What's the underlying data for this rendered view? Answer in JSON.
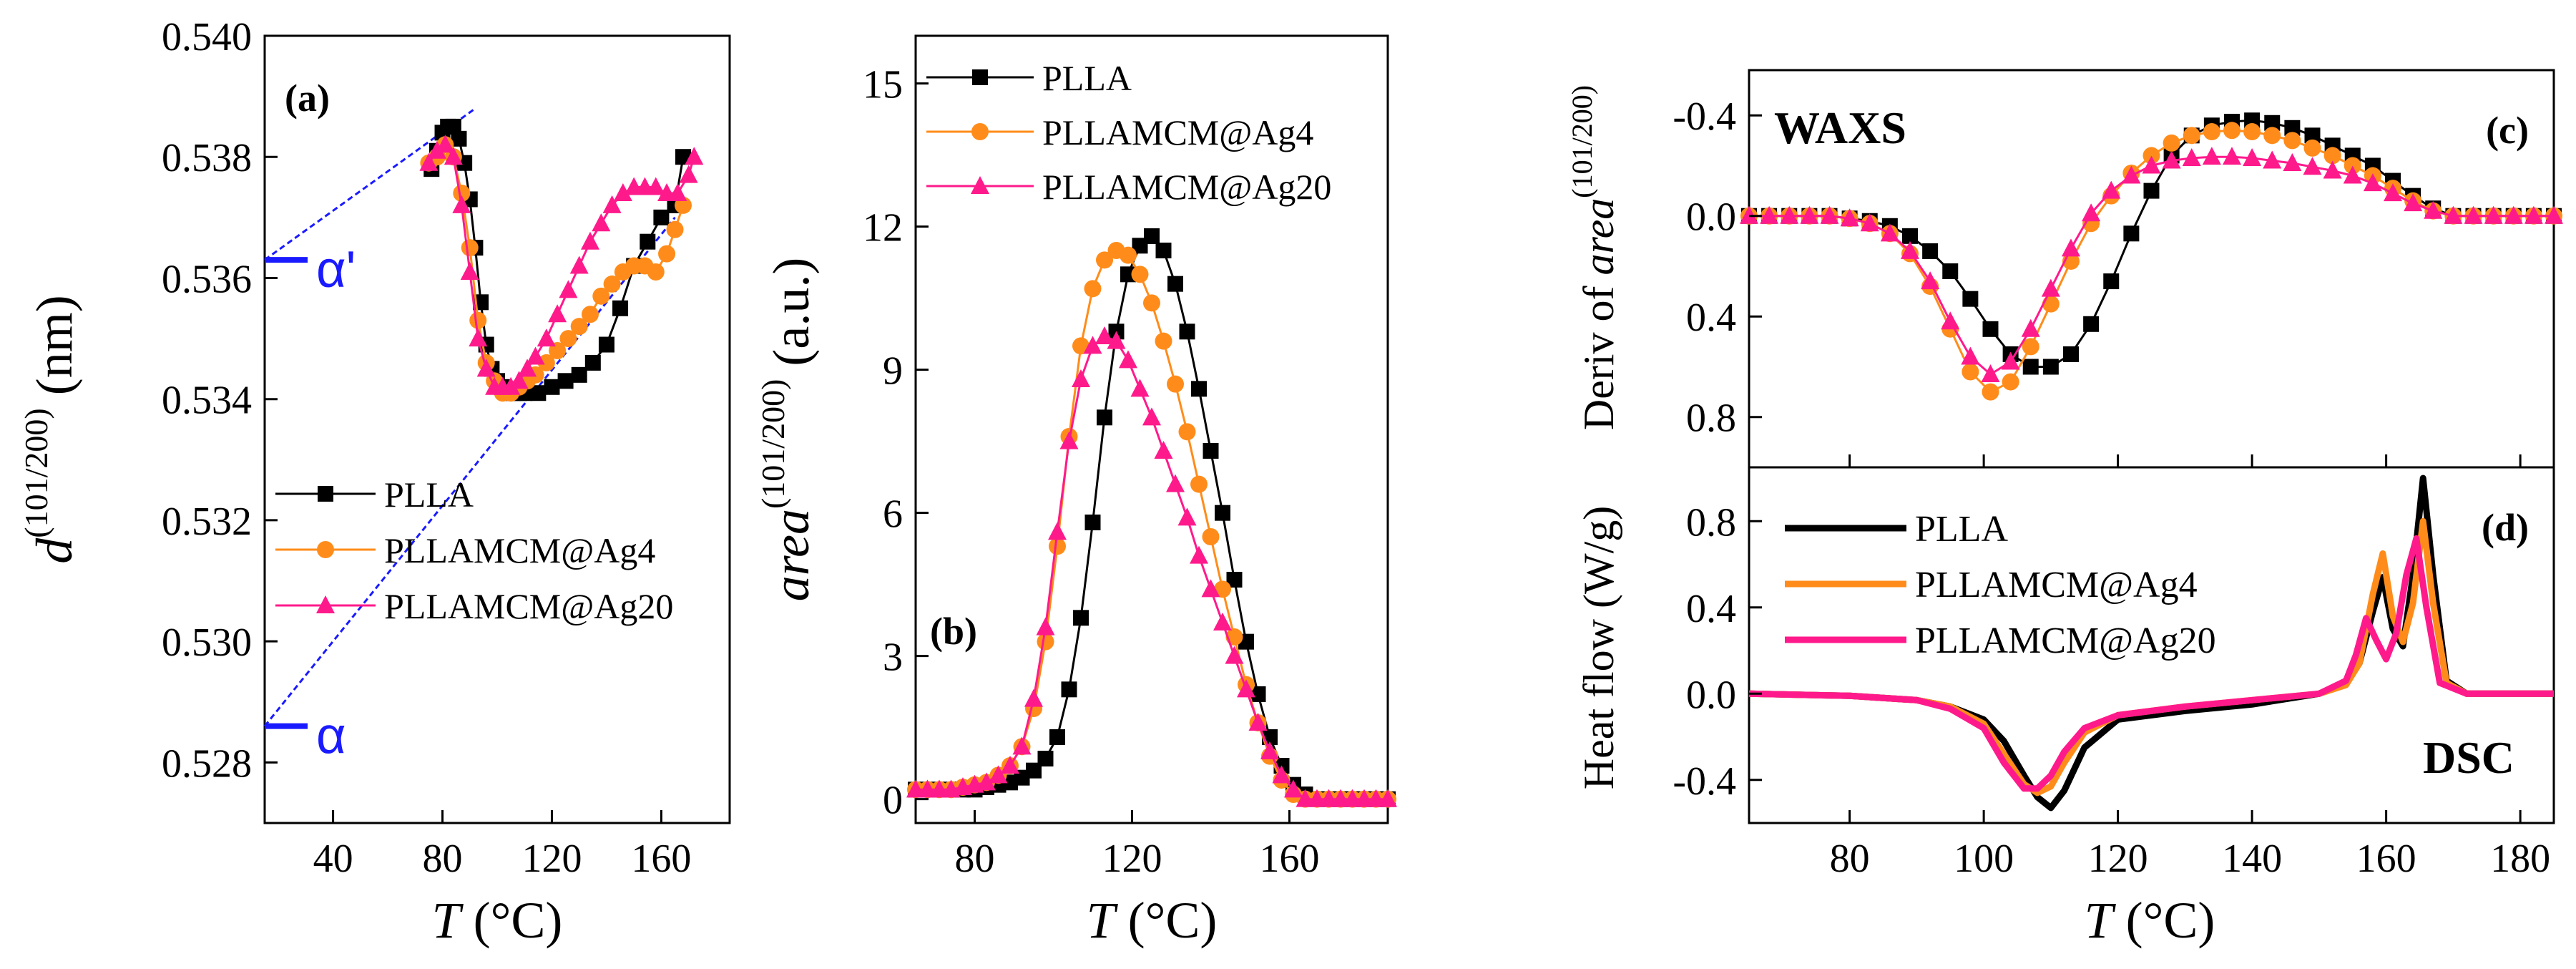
{
  "colors": {
    "PLLA": "#000000",
    "PLLAMCM@Ag4": "#ff8c1a",
    "PLLAMCM@Ag20": "#ff1a8c",
    "ref": "#1a1aff",
    "fit": "#2ecc40"
  },
  "chart_data": [
    {
      "id": "a",
      "type": "scatter",
      "panel_label": "(a)",
      "xlabel": "T (°C)",
      "xlabel_var": "T",
      "xlabel_unit": " (°C)",
      "ylabel_var": "d",
      "ylabel_sup": "(101/200)",
      "ylabel_unit": " (nm)",
      "xlim": [
        15,
        185
      ],
      "ylim": [
        0.527,
        0.54
      ],
      "xticks": [
        "40",
        "80",
        "120",
        "160"
      ],
      "xtick_values": [
        40,
        80,
        120,
        160
      ],
      "yticks": [
        "0.528",
        "0.530",
        "0.532",
        "0.534",
        "0.536",
        "0.538",
        "0.540"
      ],
      "ytick_values": [
        0.528,
        0.53,
        0.532,
        0.534,
        0.536,
        0.538,
        0.54
      ],
      "legend": [
        "PLLA",
        "PLLAMCM@Ag4",
        "PLLAMCM@Ag20"
      ],
      "reference_labels": [
        {
          "text": "α'",
          "y": 0.5363
        },
        {
          "text": "α",
          "y": 0.5286
        }
      ],
      "guide_lines": [
        {
          "x": [
            15,
            92
          ],
          "y": [
            0.5363,
            0.5388
          ]
        },
        {
          "x": [
            15,
            165
          ],
          "y": [
            0.5286,
            0.537
          ]
        }
      ],
      "series": [
        {
          "name": "PLLA",
          "x": [
            76,
            78,
            80,
            82,
            84,
            86,
            88,
            90,
            92,
            94,
            96,
            98,
            100,
            102,
            104,
            106,
            108,
            110,
            115,
            120,
            125,
            130,
            135,
            140,
            145,
            150,
            155,
            160,
            165,
            168
          ],
          "y": [
            0.5378,
            0.5381,
            0.5384,
            0.5385,
            0.5385,
            0.5383,
            0.5379,
            0.5373,
            0.5365,
            0.5356,
            0.5349,
            0.5345,
            0.5343,
            0.5342,
            0.5341,
            0.5341,
            0.5341,
            0.5341,
            0.5341,
            0.5342,
            0.5343,
            0.5344,
            0.5346,
            0.5349,
            0.5355,
            0.5362,
            0.5366,
            0.537,
            0.5372,
            0.538
          ]
        },
        {
          "name": "PLLAMCM@Ag4",
          "x": [
            75,
            78,
            81,
            84,
            87,
            90,
            93,
            96,
            99,
            102,
            105,
            108,
            111,
            114,
            118,
            122,
            126,
            130,
            134,
            138,
            142,
            146,
            150,
            154,
            158,
            162,
            165,
            168
          ],
          "y": [
            0.5379,
            0.538,
            0.5382,
            0.538,
            0.5374,
            0.5365,
            0.5353,
            0.5346,
            0.5343,
            0.5341,
            0.5341,
            0.5342,
            0.5343,
            0.5344,
            0.5346,
            0.5348,
            0.535,
            0.5352,
            0.5354,
            0.5357,
            0.5359,
            0.5361,
            0.5362,
            0.5362,
            0.5361,
            0.5364,
            0.5368,
            0.5372
          ]
        },
        {
          "name": "PLLAMCM@Ag20",
          "x": [
            75,
            78,
            81,
            84,
            87,
            90,
            93,
            96,
            99,
            102,
            105,
            108,
            111,
            114,
            118,
            122,
            126,
            130,
            134,
            138,
            142,
            146,
            150,
            154,
            158,
            162,
            166,
            170,
            172
          ],
          "y": [
            0.5379,
            0.5381,
            0.5382,
            0.538,
            0.5372,
            0.5361,
            0.535,
            0.5345,
            0.5342,
            0.5342,
            0.5342,
            0.5343,
            0.5345,
            0.5347,
            0.535,
            0.5354,
            0.5358,
            0.5362,
            0.5366,
            0.5369,
            0.5372,
            0.5374,
            0.5375,
            0.5375,
            0.5375,
            0.5374,
            0.5374,
            0.5377,
            0.538
          ]
        }
      ]
    },
    {
      "id": "b",
      "type": "line",
      "panel_label": "(b)",
      "xlabel": "T (°C)",
      "xlabel_var": "T",
      "xlabel_unit": " (°C)",
      "ylabel_var": "area",
      "ylabel_sup": "(101/200)",
      "ylabel_unit": " (a.u.)",
      "xlim": [
        65,
        185
      ],
      "ylim": [
        -0.5,
        16
      ],
      "xticks": [
        "80",
        "120",
        "160"
      ],
      "xtick_values": [
        80,
        120,
        160
      ],
      "yticks": [
        "0",
        "3",
        "6",
        "9",
        "12",
        "15"
      ],
      "ytick_values": [
        0,
        3,
        6,
        9,
        12,
        15
      ],
      "legend": [
        "PLLA",
        "PLLAMCM@Ag4",
        "PLLAMCM@Ag20"
      ],
      "series": [
        {
          "name": "PLLA",
          "x": [
            65,
            68,
            71,
            74,
            77,
            80,
            83,
            86,
            89,
            92,
            95,
            98,
            101,
            104,
            107,
            110,
            113,
            116,
            119,
            122,
            125,
            128,
            131,
            134,
            137,
            140,
            143,
            146,
            149,
            152,
            155,
            158,
            161,
            164,
            167,
            170,
            173,
            176,
            179,
            182,
            185
          ],
          "y": [
            0.2,
            0.2,
            0.2,
            0.2,
            0.2,
            0.2,
            0.25,
            0.3,
            0.35,
            0.45,
            0.6,
            0.85,
            1.3,
            2.3,
            3.8,
            5.8,
            8.0,
            9.8,
            11.0,
            11.6,
            11.8,
            11.5,
            10.8,
            9.8,
            8.6,
            7.3,
            6.0,
            4.6,
            3.3,
            2.2,
            1.3,
            0.7,
            0.3,
            0.1,
            0,
            0,
            0,
            0,
            0,
            0,
            0
          ]
        },
        {
          "name": "PLLAMCM@Ag4",
          "x": [
            65,
            68,
            71,
            74,
            77,
            80,
            83,
            86,
            89,
            92,
            95,
            98,
            101,
            104,
            107,
            110,
            113,
            116,
            119,
            122,
            125,
            128,
            131,
            134,
            137,
            140,
            143,
            146,
            149,
            152,
            155,
            158,
            161,
            164,
            167,
            170,
            173,
            176,
            179,
            182,
            185
          ],
          "y": [
            0.2,
            0.2,
            0.2,
            0.2,
            0.25,
            0.3,
            0.35,
            0.5,
            0.7,
            1.1,
            1.9,
            3.3,
            5.3,
            7.6,
            9.5,
            10.7,
            11.3,
            11.5,
            11.4,
            11.0,
            10.4,
            9.6,
            8.7,
            7.7,
            6.6,
            5.5,
            4.4,
            3.4,
            2.4,
            1.6,
            0.9,
            0.4,
            0.1,
            0,
            0,
            0,
            0,
            0,
            0,
            0,
            0
          ]
        },
        {
          "name": "PLLAMCM@Ag20",
          "x": [
            65,
            68,
            71,
            74,
            77,
            80,
            83,
            86,
            89,
            92,
            95,
            98,
            101,
            104,
            107,
            110,
            113,
            116,
            119,
            122,
            125,
            128,
            131,
            134,
            137,
            140,
            143,
            146,
            149,
            152,
            155,
            158,
            161,
            164,
            167,
            170,
            173,
            176,
            179,
            182,
            185
          ],
          "y": [
            0.2,
            0.2,
            0.2,
            0.2,
            0.25,
            0.3,
            0.35,
            0.5,
            0.7,
            1.1,
            2.1,
            3.6,
            5.6,
            7.5,
            8.8,
            9.5,
            9.7,
            9.6,
            9.2,
            8.6,
            8.0,
            7.3,
            6.6,
            5.9,
            5.1,
            4.4,
            3.7,
            3.0,
            2.3,
            1.6,
            1.0,
            0.5,
            0.2,
            0,
            0,
            0,
            0,
            0,
            0,
            0,
            0
          ]
        }
      ]
    },
    {
      "id": "c",
      "type": "line",
      "panel_label": "(c)",
      "annotation": "WAXS",
      "ylabel_prefix": "Deriv of ",
      "ylabel_var": "area",
      "ylabel_sup": "(101/200)",
      "xlim": [
        65,
        185
      ],
      "ylim": [
        1.0,
        -0.58
      ],
      "y_inverted": true,
      "yticks": [
        "-0.4",
        "0.0",
        "0.4",
        "0.8"
      ],
      "ytick_values": [
        -0.4,
        0.0,
        0.4,
        0.8
      ],
      "xtick_values": [
        80,
        100,
        120,
        140,
        160,
        180
      ],
      "series": [
        {
          "name": "PLLA",
          "x": [
            65,
            68,
            71,
            74,
            77,
            80,
            83,
            86,
            89,
            92,
            95,
            98,
            101,
            104,
            107,
            110,
            113,
            116,
            119,
            122,
            125,
            128,
            131,
            134,
            137,
            140,
            143,
            146,
            149,
            152,
            155,
            158,
            161,
            164,
            167,
            170,
            173,
            176,
            179,
            182,
            185
          ],
          "y": [
            0,
            0,
            0,
            0,
            0,
            0.01,
            0.02,
            0.04,
            0.08,
            0.14,
            0.22,
            0.33,
            0.45,
            0.55,
            0.6,
            0.6,
            0.55,
            0.43,
            0.26,
            0.07,
            -0.1,
            -0.24,
            -0.32,
            -0.36,
            -0.375,
            -0.38,
            -0.37,
            -0.35,
            -0.32,
            -0.28,
            -0.24,
            -0.2,
            -0.14,
            -0.08,
            -0.03,
            0,
            0,
            0,
            0,
            0,
            0
          ]
        },
        {
          "name": "PLLAMCM@Ag4",
          "x": [
            65,
            68,
            71,
            74,
            77,
            80,
            83,
            86,
            89,
            92,
            95,
            98,
            101,
            104,
            107,
            110,
            113,
            116,
            119,
            122,
            125,
            128,
            131,
            134,
            137,
            140,
            143,
            146,
            149,
            152,
            155,
            158,
            161,
            164,
            167,
            170,
            173,
            176,
            179,
            182,
            185
          ],
          "y": [
            0,
            0,
            0,
            0,
            0,
            0.01,
            0.03,
            0.07,
            0.15,
            0.28,
            0.45,
            0.62,
            0.7,
            0.66,
            0.52,
            0.35,
            0.18,
            0.03,
            -0.08,
            -0.17,
            -0.24,
            -0.29,
            -0.32,
            -0.335,
            -0.34,
            -0.335,
            -0.32,
            -0.3,
            -0.27,
            -0.24,
            -0.2,
            -0.16,
            -0.11,
            -0.06,
            -0.02,
            0,
            0,
            0,
            0,
            0,
            0
          ]
        },
        {
          "name": "PLLAMCM@Ag20",
          "x": [
            65,
            68,
            71,
            74,
            77,
            80,
            83,
            86,
            89,
            92,
            95,
            98,
            101,
            104,
            107,
            110,
            113,
            116,
            119,
            122,
            125,
            128,
            131,
            134,
            137,
            140,
            143,
            146,
            149,
            152,
            155,
            158,
            161,
            164,
            167,
            170,
            173,
            176,
            179,
            182,
            185
          ],
          "y": [
            0,
            0,
            0,
            0,
            0,
            0.01,
            0.03,
            0.07,
            0.14,
            0.26,
            0.42,
            0.56,
            0.63,
            0.58,
            0.45,
            0.29,
            0.13,
            -0.01,
            -0.1,
            -0.16,
            -0.2,
            -0.22,
            -0.23,
            -0.235,
            -0.235,
            -0.23,
            -0.22,
            -0.21,
            -0.195,
            -0.18,
            -0.16,
            -0.13,
            -0.09,
            -0.05,
            -0.02,
            0,
            0,
            0,
            0,
            0,
            0
          ]
        }
      ]
    },
    {
      "id": "d",
      "type": "line",
      "panel_label": "(d)",
      "annotation": "DSC",
      "ylabel": "Heat flow (W/g)",
      "xlabel": "T (°C)",
      "xlabel_var": "T",
      "xlabel_unit": " (°C)",
      "xlim": [
        65,
        185
      ],
      "ylim": [
        -0.6,
        1.05
      ],
      "xticks": [
        "80",
        "100",
        "120",
        "140",
        "160",
        "180"
      ],
      "xtick_values": [
        80,
        100,
        120,
        140,
        160,
        180
      ],
      "yticks": [
        "-0.4",
        "0.0",
        "0.4",
        "0.8"
      ],
      "ytick_values": [
        -0.4,
        0.0,
        0.4,
        0.8
      ],
      "legend": [
        "PLLA",
        "PLLAMCM@Ag4",
        "PLLAMCM@Ag20"
      ],
      "series": [
        {
          "name": "PLLA",
          "x": [
            65,
            80,
            90,
            95,
            100,
            103,
            106,
            108,
            110,
            112,
            115,
            120,
            130,
            140,
            150,
            154,
            156,
            158,
            159.5,
            161,
            162.5,
            164,
            165.5,
            167,
            169,
            172,
            185
          ],
          "y": [
            0,
            -0.01,
            -0.03,
            -0.06,
            -0.12,
            -0.22,
            -0.38,
            -0.48,
            -0.53,
            -0.45,
            -0.25,
            -0.12,
            -0.08,
            -0.05,
            0.0,
            0.05,
            0.14,
            0.38,
            0.54,
            0.3,
            0.22,
            0.55,
            1.0,
            0.55,
            0.06,
            0,
            0
          ]
        },
        {
          "name": "PLLAMCM@Ag4",
          "x": [
            65,
            80,
            90,
            95,
            100,
            103,
            106,
            108,
            110,
            112,
            115,
            120,
            130,
            140,
            150,
            154,
            156,
            158,
            159.5,
            161,
            162.5,
            164,
            165.5,
            167,
            169,
            172,
            185
          ],
          "y": [
            0,
            -0.01,
            -0.03,
            -0.06,
            -0.14,
            -0.28,
            -0.42,
            -0.46,
            -0.43,
            -0.32,
            -0.18,
            -0.1,
            -0.06,
            -0.03,
            0.0,
            0.04,
            0.14,
            0.46,
            0.65,
            0.36,
            0.24,
            0.42,
            0.8,
            0.42,
            0.05,
            0,
            0
          ]
        },
        {
          "name": "PLLAMCM@Ag20",
          "x": [
            65,
            80,
            90,
            95,
            100,
            103,
            106,
            108,
            110,
            112,
            115,
            120,
            130,
            140,
            150,
            154,
            155.5,
            157,
            158.5,
            160,
            161.5,
            163,
            164.5,
            166,
            168,
            172,
            185
          ],
          "y": [
            0,
            -0.01,
            -0.03,
            -0.07,
            -0.16,
            -0.32,
            -0.44,
            -0.44,
            -0.38,
            -0.27,
            -0.16,
            -0.1,
            -0.06,
            -0.03,
            0.0,
            0.06,
            0.18,
            0.35,
            0.25,
            0.16,
            0.28,
            0.55,
            0.72,
            0.4,
            0.05,
            0,
            0
          ]
        }
      ]
    }
  ]
}
